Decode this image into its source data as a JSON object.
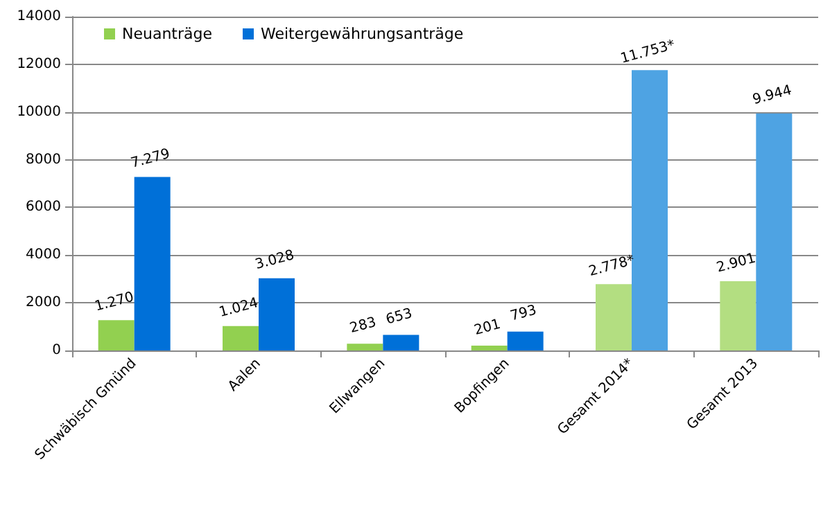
{
  "chart_data": {
    "type": "bar",
    "categories": [
      "Schwäbisch Gmünd",
      "Aalen",
      "Ellwangen",
      "Bopfingen",
      "Gesamt 2014*",
      "Gesamt 2013"
    ],
    "series": [
      {
        "name": "Neuanträge",
        "color": "#92d050",
        "colors": [
          "#92d050",
          "#92d050",
          "#92d050",
          "#92d050",
          "#b3de81",
          "#b3de81"
        ],
        "values": [
          1270,
          1024,
          283,
          201,
          2778,
          2901
        ],
        "value_labels": [
          "1.270",
          "1.024",
          "283",
          "201",
          "2.778*",
          "2.901"
        ]
      },
      {
        "name": "Weitergewährungsanträge",
        "color": "#0070d8",
        "colors": [
          "#0070d8",
          "#0070d8",
          "#0070d8",
          "#0070d8",
          "#4ea3e3",
          "#4ea3e3"
        ],
        "values": [
          7279,
          3028,
          653,
          793,
          11753,
          9944
        ],
        "value_labels": [
          "7.279",
          "3.028",
          "653",
          "793",
          "11.753*",
          "9.944"
        ]
      }
    ],
    "ylim": [
      0,
      14000
    ],
    "yticks": [
      0,
      2000,
      4000,
      6000,
      8000,
      10000,
      12000,
      14000
    ],
    "grid": "y",
    "legend": "top left"
  }
}
